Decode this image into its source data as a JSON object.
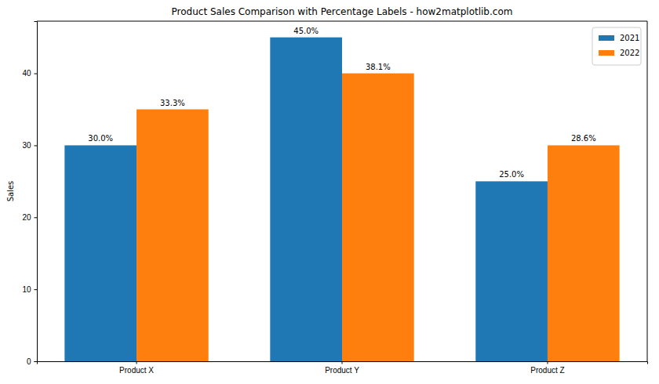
{
  "chart_data": {
    "type": "bar",
    "title": "Product Sales Comparison with Percentage Labels - how2matplotlib.com",
    "y_label": "Sales",
    "categories": [
      "Product X",
      "Product Y",
      "Product Z"
    ],
    "series": [
      {
        "name": "2021",
        "color": "#1f77b4",
        "values": [
          30,
          45,
          25
        ],
        "percent_labels": [
          "30.0%",
          "45.0%",
          "25.0%"
        ]
      },
      {
        "name": "2022",
        "color": "#ff7f0e",
        "values": [
          35,
          40,
          30
        ],
        "percent_labels": [
          "33.3%",
          "38.1%",
          "28.6%"
        ]
      }
    ],
    "ylim": [
      0,
      47.25
    ],
    "yticks": [
      0,
      10,
      20,
      30,
      40
    ],
    "grid": false,
    "legend": "upper right"
  }
}
